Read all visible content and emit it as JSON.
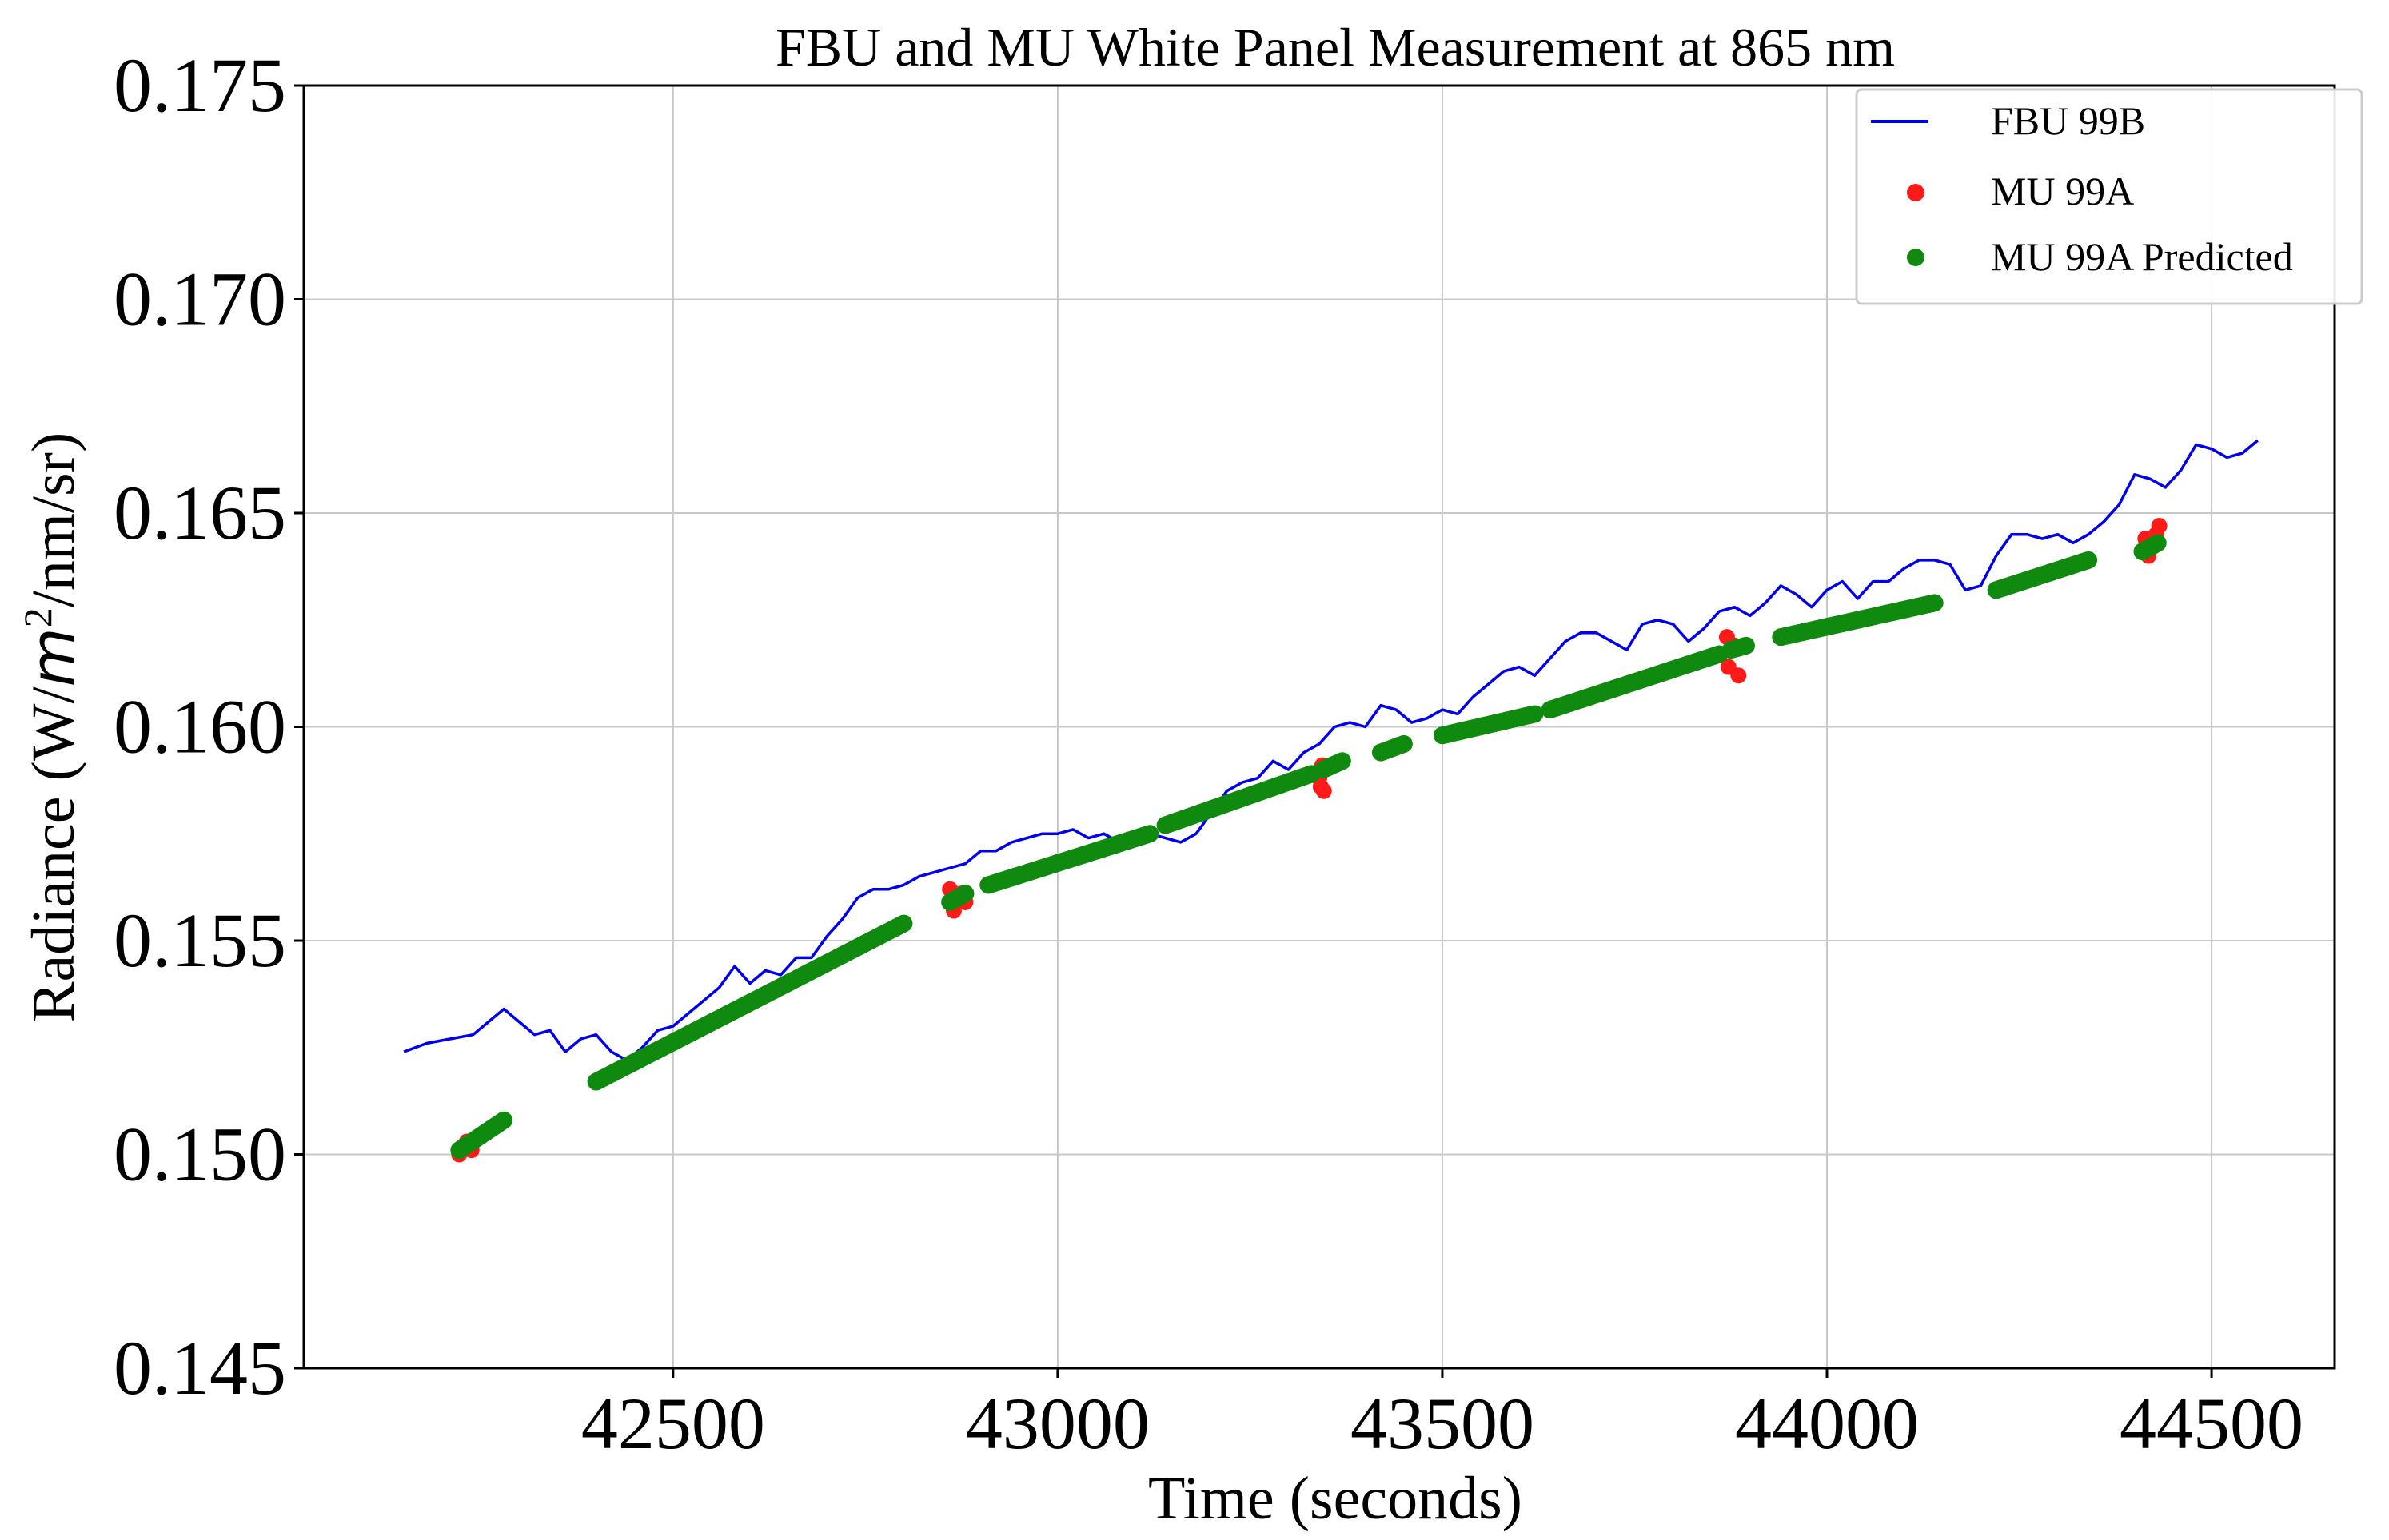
{
  "chart_data": {
    "type": "line+scatter",
    "title": "FBU and MU White Panel Measurement at 865 nm",
    "xlabel": "Time (seconds)",
    "ylabel_parts": {
      "prefix": "Radiance (W/",
      "math": "m",
      "sup": "2",
      "suffix": "/nm/sr)"
    },
    "xlim": [
      42020,
      44660
    ],
    "ylim": [
      0.145,
      0.175
    ],
    "xticks": [
      42500,
      43000,
      43500,
      44000,
      44500
    ],
    "xtick_labels": [
      "42500",
      "43000",
      "43500",
      "44000",
      "44500"
    ],
    "yticks": [
      0.145,
      0.15,
      0.155,
      0.16,
      0.165,
      0.17,
      0.175
    ],
    "ytick_labels": [
      "0.145",
      "0.150",
      "0.155",
      "0.160",
      "0.165",
      "0.170",
      "0.175"
    ],
    "grid": true,
    "legend_position": "top-right",
    "colors": {
      "fbu": "#0000ee",
      "mu": "#ff1a1a",
      "pred": "#0f8a0f"
    },
    "series": [
      {
        "name": "FBU 99B",
        "kind": "line",
        "points": [
          [
            42150,
            0.1524
          ],
          [
            42180,
            0.1526
          ],
          [
            42210,
            0.1527
          ],
          [
            42240,
            0.1528
          ],
          [
            42260,
            0.1531
          ],
          [
            42280,
            0.1534
          ],
          [
            42300,
            0.1531
          ],
          [
            42320,
            0.1528
          ],
          [
            42340,
            0.1529
          ],
          [
            42360,
            0.1524
          ],
          [
            42380,
            0.1527
          ],
          [
            42400,
            0.1528
          ],
          [
            42420,
            0.1524
          ],
          [
            42440,
            0.1522
          ],
          [
            42460,
            0.1525
          ],
          [
            42480,
            0.1529
          ],
          [
            42500,
            0.153
          ],
          [
            42520,
            0.1533
          ],
          [
            42540,
            0.1536
          ],
          [
            42560,
            0.1539
          ],
          [
            42580,
            0.1544
          ],
          [
            42600,
            0.154
          ],
          [
            42620,
            0.1543
          ],
          [
            42640,
            0.1542
          ],
          [
            42660,
            0.1546
          ],
          [
            42680,
            0.1546
          ],
          [
            42700,
            0.1551
          ],
          [
            42720,
            0.1555
          ],
          [
            42740,
            0.156
          ],
          [
            42760,
            0.1562
          ],
          [
            42780,
            0.1562
          ],
          [
            42800,
            0.1563
          ],
          [
            42820,
            0.1565
          ],
          [
            42840,
            0.1566
          ],
          [
            42860,
            0.1567
          ],
          [
            42880,
            0.1568
          ],
          [
            42900,
            0.1571
          ],
          [
            42920,
            0.1571
          ],
          [
            42940,
            0.1573
          ],
          [
            42960,
            0.1574
          ],
          [
            42980,
            0.1575
          ],
          [
            43000,
            0.1575
          ],
          [
            43020,
            0.1576
          ],
          [
            43040,
            0.1574
          ],
          [
            43060,
            0.1575
          ],
          [
            43080,
            0.1573
          ],
          [
            43100,
            0.1573
          ],
          [
            43120,
            0.1575
          ],
          [
            43140,
            0.1574
          ],
          [
            43160,
            0.1573
          ],
          [
            43180,
            0.1575
          ],
          [
            43200,
            0.158
          ],
          [
            43220,
            0.1585
          ],
          [
            43240,
            0.1587
          ],
          [
            43260,
            0.1588
          ],
          [
            43280,
            0.1592
          ],
          [
            43300,
            0.159
          ],
          [
            43320,
            0.1594
          ],
          [
            43340,
            0.1596
          ],
          [
            43360,
            0.16
          ],
          [
            43380,
            0.1601
          ],
          [
            43400,
            0.16
          ],
          [
            43420,
            0.1605
          ],
          [
            43440,
            0.1604
          ],
          [
            43460,
            0.1601
          ],
          [
            43480,
            0.1602
          ],
          [
            43500,
            0.1604
          ],
          [
            43520,
            0.1603
          ],
          [
            43540,
            0.1607
          ],
          [
            43560,
            0.161
          ],
          [
            43580,
            0.1613
          ],
          [
            43600,
            0.1614
          ],
          [
            43620,
            0.1612
          ],
          [
            43640,
            0.1616
          ],
          [
            43660,
            0.162
          ],
          [
            43680,
            0.1622
          ],
          [
            43700,
            0.1622
          ],
          [
            43720,
            0.162
          ],
          [
            43740,
            0.1618
          ],
          [
            43760,
            0.1624
          ],
          [
            43780,
            0.1625
          ],
          [
            43800,
            0.1624
          ],
          [
            43820,
            0.162
          ],
          [
            43840,
            0.1623
          ],
          [
            43860,
            0.1627
          ],
          [
            43880,
            0.1628
          ],
          [
            43900,
            0.1626
          ],
          [
            43920,
            0.1629
          ],
          [
            43940,
            0.1633
          ],
          [
            43960,
            0.1631
          ],
          [
            43980,
            0.1628
          ],
          [
            44000,
            0.1632
          ],
          [
            44020,
            0.1634
          ],
          [
            44040,
            0.163
          ],
          [
            44060,
            0.1634
          ],
          [
            44080,
            0.1634
          ],
          [
            44100,
            0.1637
          ],
          [
            44120,
            0.1639
          ],
          [
            44140,
            0.1639
          ],
          [
            44160,
            0.1638
          ],
          [
            44180,
            0.1632
          ],
          [
            44200,
            0.1633
          ],
          [
            44220,
            0.164
          ],
          [
            44240,
            0.1645
          ],
          [
            44260,
            0.1645
          ],
          [
            44280,
            0.1644
          ],
          [
            44300,
            0.1645
          ],
          [
            44320,
            0.1643
          ],
          [
            44340,
            0.1645
          ],
          [
            44360,
            0.1648
          ],
          [
            44380,
            0.1652
          ],
          [
            44400,
            0.1659
          ],
          [
            44420,
            0.1658
          ],
          [
            44440,
            0.1656
          ],
          [
            44460,
            0.166
          ],
          [
            44480,
            0.1666
          ],
          [
            44500,
            0.1665
          ],
          [
            44520,
            0.1663
          ],
          [
            44540,
            0.1664
          ],
          [
            44560,
            0.1667
          ]
        ]
      },
      {
        "name": "MU 99A",
        "kind": "scatter",
        "points": [
          [
            42222,
            0.15
          ],
          [
            42228,
            0.1502
          ],
          [
            42232,
            0.1503
          ],
          [
            42238,
            0.1501
          ],
          [
            42860,
            0.1562
          ],
          [
            42865,
            0.1557
          ],
          [
            42870,
            0.156
          ],
          [
            42875,
            0.1561
          ],
          [
            42880,
            0.1559
          ],
          [
            43340,
            0.1588
          ],
          [
            43342,
            0.1586
          ],
          [
            43344,
            0.1591
          ],
          [
            43346,
            0.1585
          ],
          [
            43870,
            0.1621
          ],
          [
            43872,
            0.1614
          ],
          [
            43875,
            0.1618
          ],
          [
            43880,
            0.1619
          ],
          [
            43885,
            0.1612
          ],
          [
            44410,
            0.1641
          ],
          [
            44414,
            0.1644
          ],
          [
            44418,
            0.164
          ],
          [
            44422,
            0.1642
          ],
          [
            44428,
            0.1645
          ],
          [
            44432,
            0.1647
          ]
        ]
      },
      {
        "name": "MU 99A Predicted",
        "kind": "scatter",
        "segments": [
          [
            42222,
            42280,
            0.1501,
            0.1508
          ],
          [
            42400,
            42800,
            0.1517,
            0.1554
          ],
          [
            42860,
            42880,
            0.1559,
            0.1561
          ],
          [
            42910,
            43120,
            0.1563,
            0.1575
          ],
          [
            43140,
            43330,
            0.1577,
            0.1589
          ],
          [
            43345,
            43370,
            0.159,
            0.1592
          ],
          [
            43420,
            43450,
            0.1594,
            0.1596
          ],
          [
            43500,
            43620,
            0.1598,
            0.1603
          ],
          [
            43640,
            43860,
            0.1604,
            0.1617
          ],
          [
            43875,
            43895,
            0.1618,
            0.1619
          ],
          [
            43940,
            44140,
            0.1621,
            0.1629
          ],
          [
            44220,
            44340,
            0.1632,
            0.1639
          ],
          [
            44410,
            44430,
            0.1641,
            0.1643
          ]
        ]
      }
    ]
  }
}
